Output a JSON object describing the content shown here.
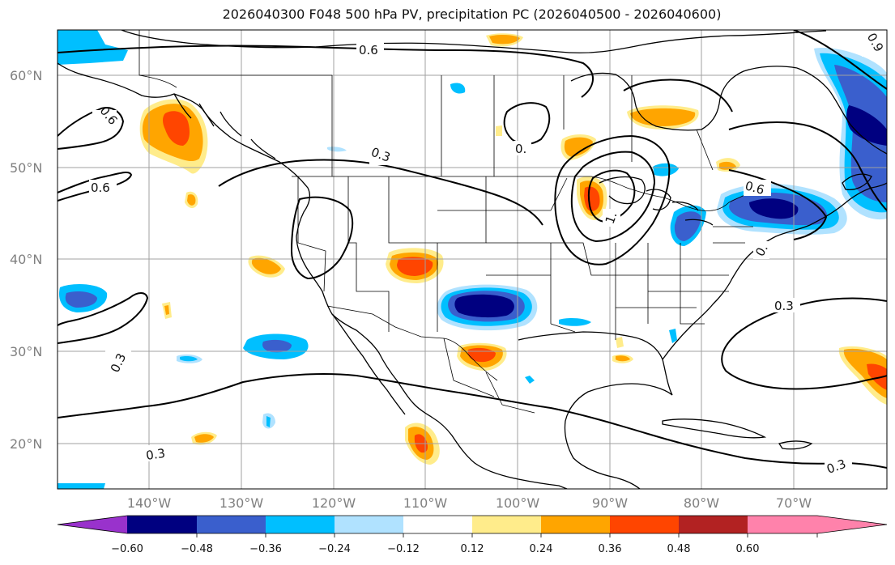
{
  "title": "2026040300 F048 500 hPa PV, precipitation PC (2026040500 - 2026040600)",
  "map": {
    "lat_labels": [
      "60°N",
      "50°N",
      "40°N",
      "30°N",
      "20°N"
    ],
    "lon_labels": [
      "140°W",
      "130°W",
      "120°W",
      "110°W",
      "100°W",
      "90°W",
      "80°W",
      "70°W"
    ],
    "contour_labels": [
      "0.6",
      "0.6",
      "0.6",
      "0.3",
      "0.3",
      "0.3",
      "0.3",
      "0.3",
      "0.6",
      "0.9",
      "1.",
      "0.",
      "0."
    ],
    "colors": {
      "grid": "#a0a0a0",
      "coast": "#000000",
      "contour": "#000000"
    }
  },
  "colorbar": {
    "ticks": [
      "−0.60",
      "−0.48",
      "−0.36",
      "−0.24",
      "−0.12",
      "0.12",
      "0.24",
      "0.36",
      "0.48",
      "0.60"
    ],
    "colors": [
      "#9932cc",
      "#000080",
      "#3a5fcd",
      "#00bfff",
      "#b0e2ff",
      "#ffffff",
      "#ffec8b",
      "#ffa500",
      "#ff4500",
      "#b22222",
      "#ff82ab"
    ]
  }
}
